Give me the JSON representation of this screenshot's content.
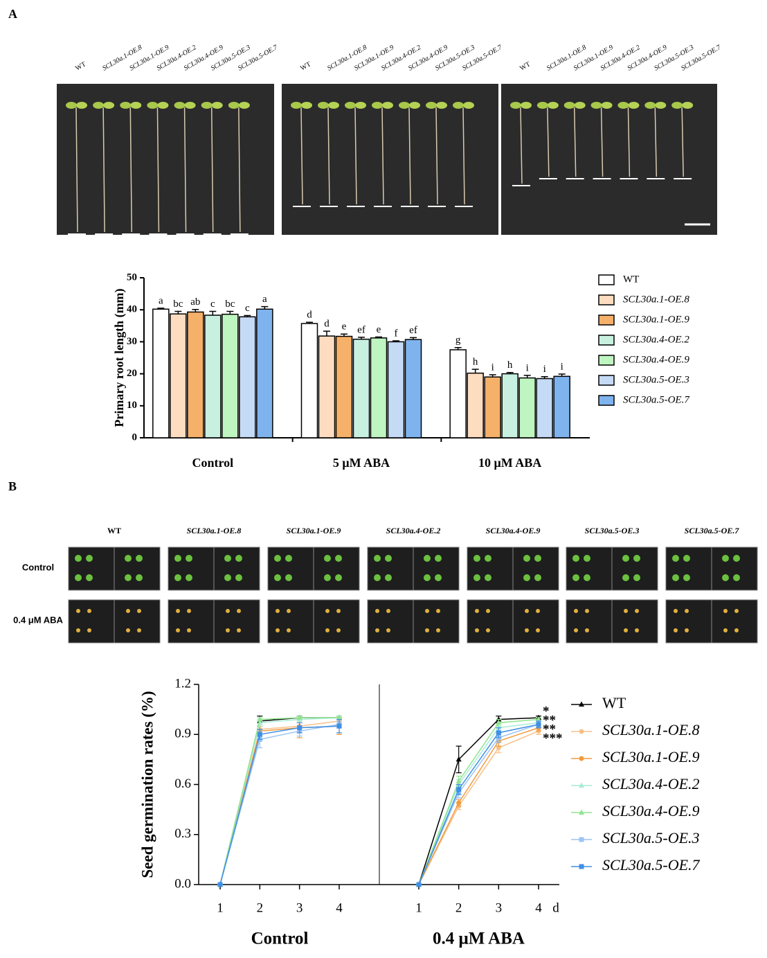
{
  "panel_labels": [
    "A",
    "B"
  ],
  "photo_a_labels": [
    "WT",
    "SCL30a.1-OE.8",
    "SCL30a.1-OE.9",
    "SCL30a.4-OE.2",
    "SCL30a.4-OE.9",
    "SCL30a.5-OE.3",
    "SCL30a.5-OE.7"
  ],
  "photo_b_columns": [
    "WT",
    "SCL30a.1-OE.8",
    "SCL30a.1-OE.9",
    "SCL30a.4-OE.2",
    "SCL30a.4-OE.9",
    "SCL30a.5-OE.3",
    "SCL30a.5-OE.7"
  ],
  "photo_b_rows": [
    "Control",
    "0.4 μM ABA"
  ],
  "chart_data": [
    {
      "type": "bar",
      "ylabel": "Primary root length (mm)",
      "categories": [
        "Control",
        "5 μM ABA",
        "10 μM ABA"
      ],
      "ylim": [
        0,
        50
      ],
      "yticks": [
        0,
        10,
        20,
        30,
        40,
        50
      ],
      "legend": "right",
      "series": [
        {
          "name": "WT",
          "color": "#ffffff",
          "values": [
            40.2,
            35.7,
            27.5
          ],
          "errors": [
            0.3,
            0.4,
            0.7
          ],
          "letters": [
            "a",
            "d",
            "g"
          ]
        },
        {
          "name": "SCL30a.1-OE.8",
          "color": "#fddcbf",
          "values": [
            38.7,
            31.8,
            20.2
          ],
          "errors": [
            0.8,
            1.5,
            1.2
          ],
          "letters": [
            "bc",
            "d",
            "h"
          ]
        },
        {
          "name": "SCL30a.1-OE.9",
          "color": "#f5b06a",
          "values": [
            39.3,
            31.7,
            19.0
          ],
          "errors": [
            0.8,
            0.7,
            0.7
          ],
          "letters": [
            "ab",
            "e",
            "i"
          ]
        },
        {
          "name": "SCL30a.4-OE.2",
          "color": "#c8f0e0",
          "values": [
            38.3,
            30.8,
            20.0
          ],
          "errors": [
            1.2,
            0.6,
            0.4
          ],
          "letters": [
            "c",
            "ef",
            "h"
          ]
        },
        {
          "name": "SCL30a.4-OE.9",
          "color": "#bff5c0",
          "values": [
            38.6,
            31.2,
            18.7
          ],
          "errors": [
            0.9,
            0.3,
            0.8
          ],
          "letters": [
            "bc",
            "e",
            "i"
          ]
        },
        {
          "name": "SCL30a.5-OE.3",
          "color": "#c5daf5",
          "values": [
            37.8,
            30.0,
            18.5
          ],
          "errors": [
            0.4,
            0.3,
            0.6
          ],
          "letters": [
            "c",
            "f",
            "i"
          ]
        },
        {
          "name": "SCL30a.5-OE.7",
          "color": "#7fb3ee",
          "values": [
            40.2,
            30.7,
            19.2
          ],
          "errors": [
            0.8,
            0.6,
            0.7
          ],
          "letters": [
            "a",
            "ef",
            "i"
          ]
        }
      ]
    },
    {
      "type": "line",
      "ylabel": "Seed germination rates  (%)",
      "xlabel": "d",
      "panels": [
        "Control",
        "0.4 μM ABA"
      ],
      "x": [
        1,
        2,
        3,
        4
      ],
      "xticks": [
        1,
        2,
        3,
        4
      ],
      "ylim": [
        0,
        1.2
      ],
      "yticks": [
        {
          "value": 0,
          "label": "0.0"
        },
        0.3,
        0.6,
        0.9,
        1.2
      ],
      "legend": "right",
      "series": [
        {
          "name": "WT",
          "color": "#000000",
          "marker": "triangle",
          "values": [
            [
              0,
              0.98,
              1.0,
              1.0
            ],
            [
              0,
              0.75,
              0.99,
              1.0
            ]
          ],
          "errors": [
            [
              0,
              0.03,
              0.01,
              0.01
            ],
            [
              0,
              0.08,
              0.02,
              0.01
            ]
          ]
        },
        {
          "name": "SCL30a.1-OE.8",
          "color": "#f7c089",
          "marker": "circle",
          "values": [
            [
              0,
              0.93,
              0.95,
              0.98
            ],
            [
              0,
              0.47,
              0.82,
              0.92
            ]
          ],
          "errors": [
            [
              0,
              0.03,
              0.03,
              0.02
            ],
            [
              0,
              0.02,
              0.03,
              0.02
            ]
          ]
        },
        {
          "name": "SCL30a.1-OE.9",
          "color": "#f29b3e",
          "marker": "circle",
          "values": [
            [
              0,
              0.92,
              0.94,
              0.95
            ],
            [
              0,
              0.49,
              0.86,
              0.94
            ]
          ],
          "errors": [
            [
              0,
              0.03,
              0.06,
              0.05
            ],
            [
              0,
              0.02,
              0.03,
              0.02
            ]
          ]
        },
        {
          "name": "SCL30a.4-OE.2",
          "color": "#a8ecd6",
          "marker": "triangle",
          "values": [
            [
              0,
              0.97,
              0.99,
              1.0
            ],
            [
              0,
              0.6,
              0.94,
              0.97
            ]
          ],
          "errors": [
            [
              0,
              0.02,
              0.01,
              0.01
            ],
            [
              0,
              0.03,
              0.02,
              0.01
            ]
          ]
        },
        {
          "name": "SCL30a.4-OE.9",
          "color": "#8fe48f",
          "marker": "triangle",
          "values": [
            [
              0,
              0.99,
              1.0,
              1.0
            ],
            [
              0,
              0.62,
              0.97,
              0.99
            ]
          ],
          "errors": [
            [
              0,
              0.01,
              0.01,
              0.01
            ],
            [
              0,
              0.03,
              0.02,
              0.01
            ]
          ]
        },
        {
          "name": "SCL30a.5-OE.3",
          "color": "#9cc4f2",
          "marker": "square",
          "values": [
            [
              0,
              0.87,
              0.92,
              0.96
            ],
            [
              0,
              0.55,
              0.88,
              0.96
            ]
          ],
          "errors": [
            [
              0,
              0.05,
              0.03,
              0.02
            ],
            [
              0,
              0.03,
              0.03,
              0.02
            ]
          ]
        },
        {
          "name": "SCL30a.5-OE.7",
          "color": "#3f8fe6",
          "marker": "square",
          "values": [
            [
              0,
              0.9,
              0.94,
              0.95
            ],
            [
              0,
              0.57,
              0.91,
              0.96
            ]
          ],
          "errors": [
            [
              0,
              0.03,
              0.03,
              0.04
            ],
            [
              0,
              0.03,
              0.03,
              0.02
            ]
          ]
        }
      ],
      "annotations": [
        {
          "text": "*",
          "color": "#3f8fe6"
        },
        {
          "text": "**",
          "color": "#9cc4f2"
        },
        {
          "text": "**",
          "color": "#f29b3e"
        },
        {
          "text": "***",
          "color": "#f7c089"
        }
      ]
    }
  ]
}
